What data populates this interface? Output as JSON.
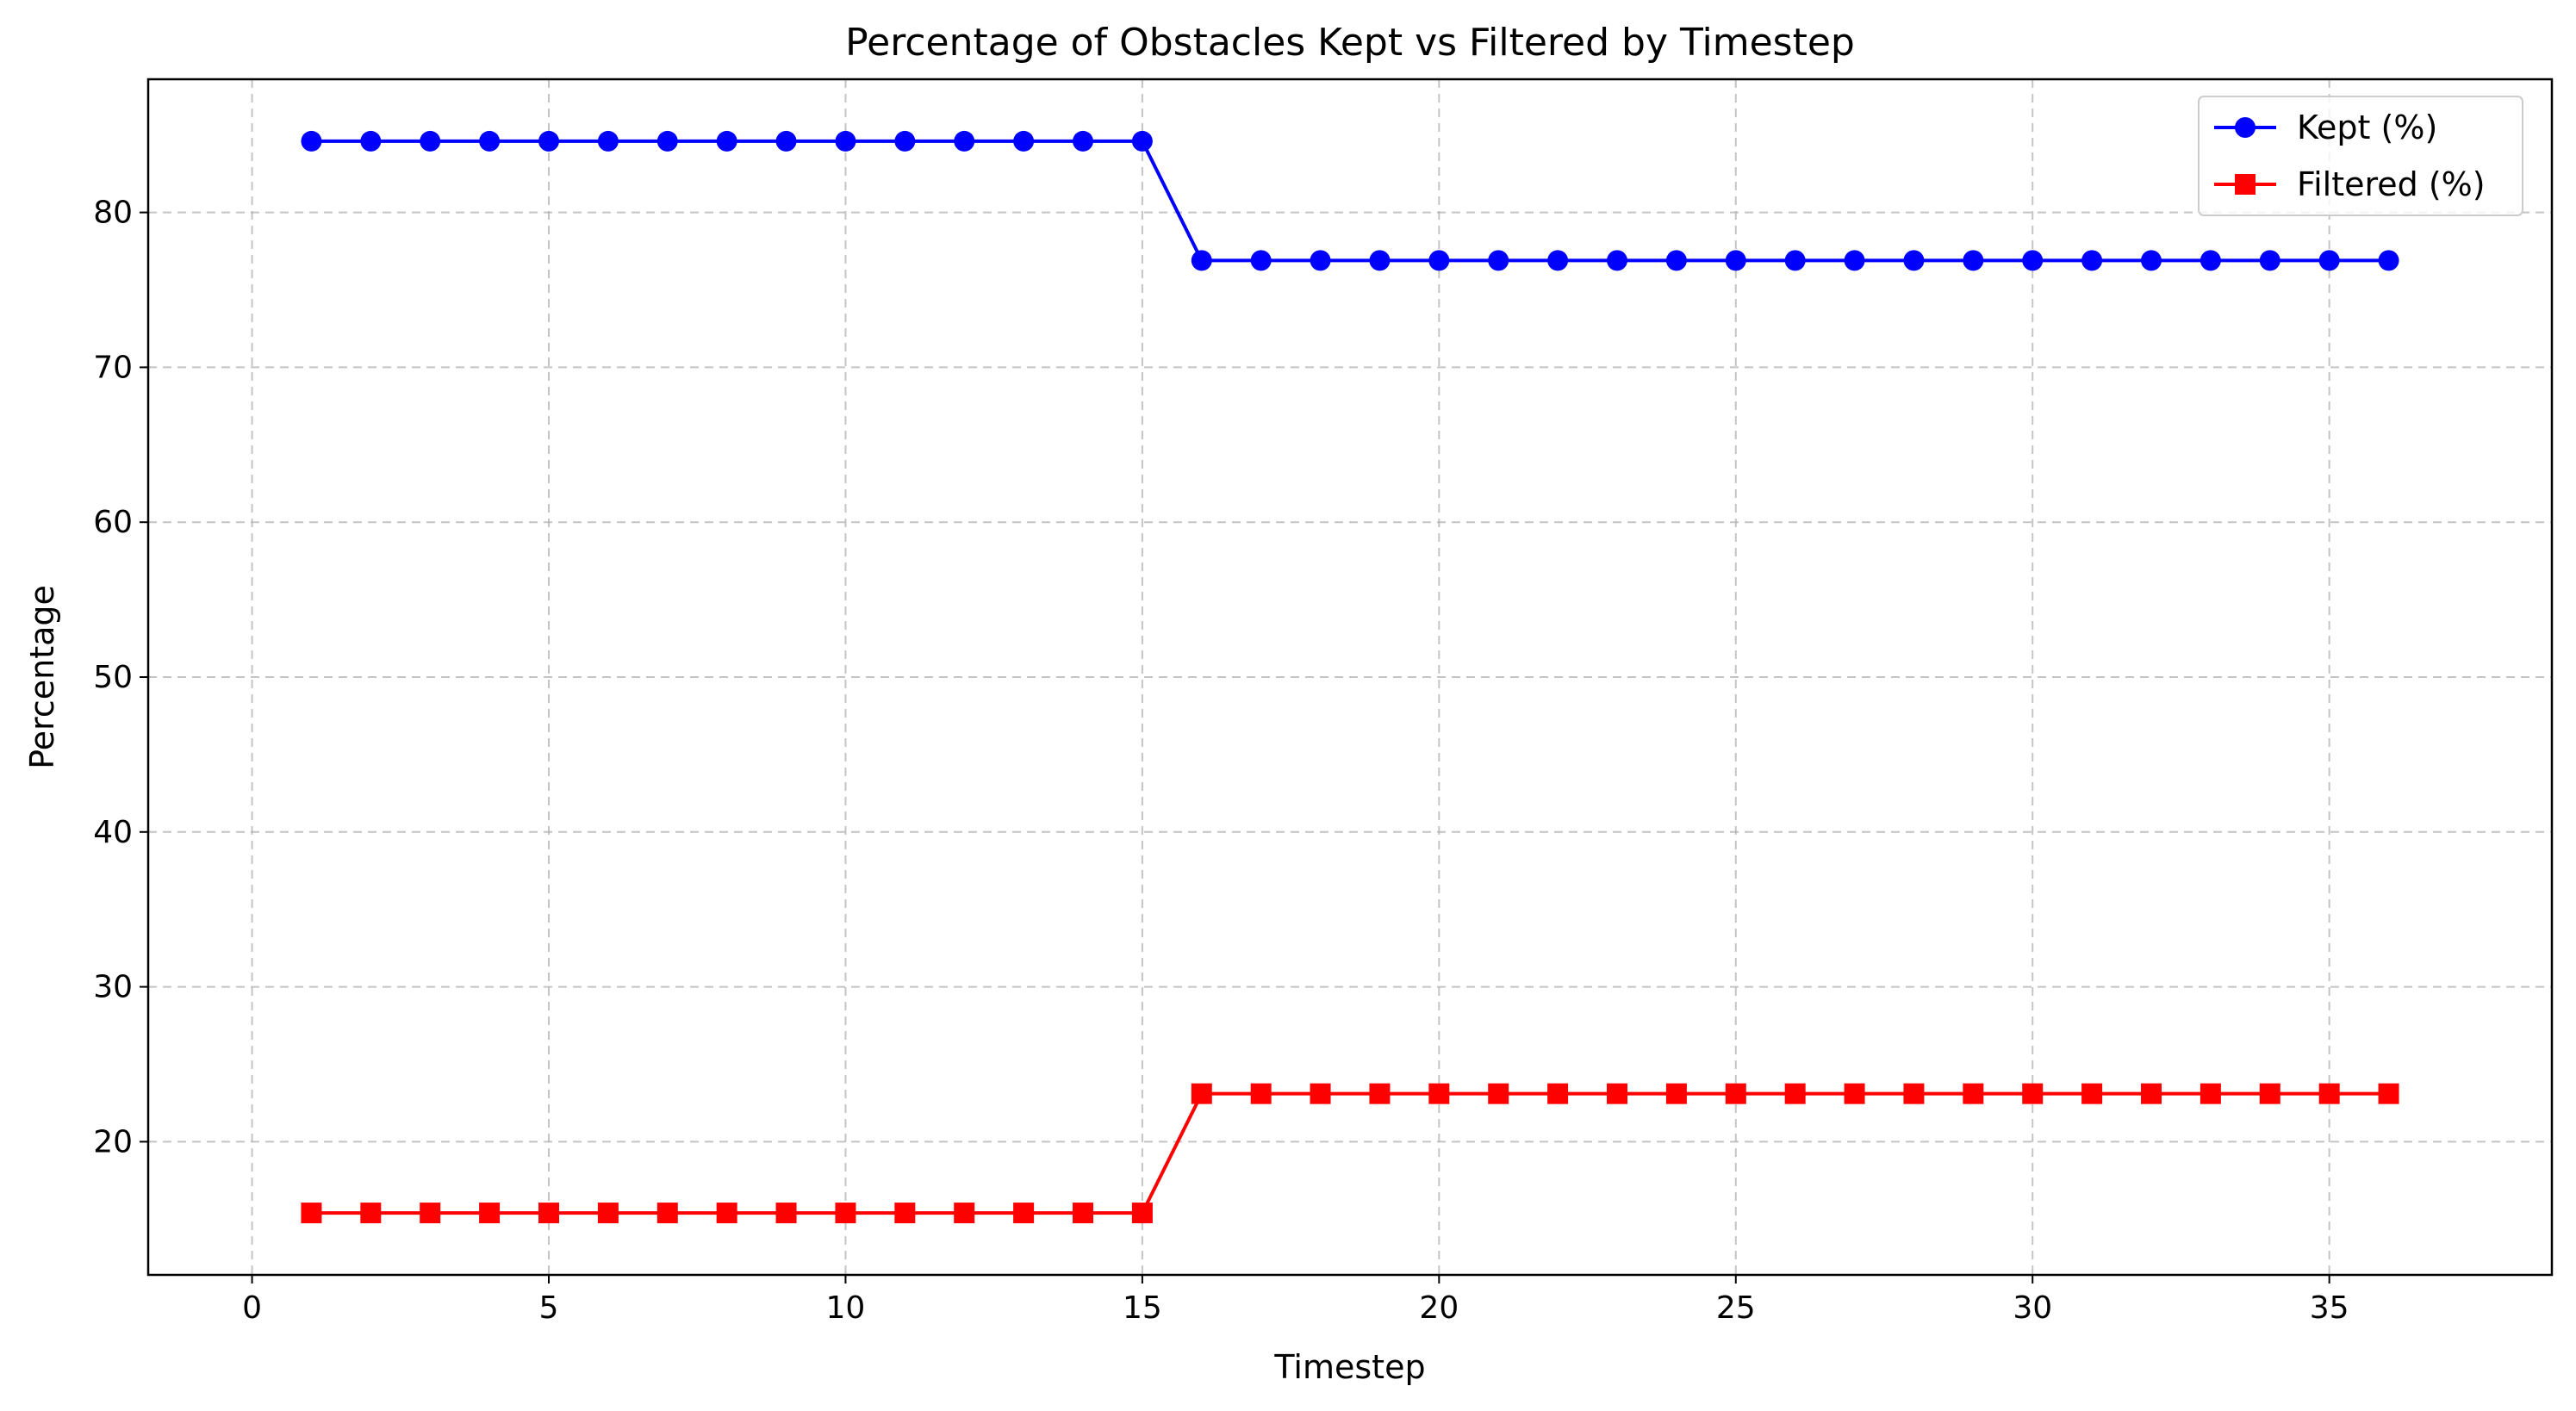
{
  "chart_data": {
    "type": "line",
    "title": "Percentage of Obstacles Kept vs Filtered by Timestep",
    "xlabel": "Timestep",
    "ylabel": "Percentage",
    "xlim": [
      -1.75,
      38.75
    ],
    "ylim": [
      11.4,
      88.6
    ],
    "xticks": [
      0,
      5,
      10,
      15,
      20,
      25,
      30,
      35
    ],
    "yticks": [
      20,
      30,
      40,
      50,
      60,
      70,
      80
    ],
    "grid": true,
    "legend_position": "top-right",
    "x": [
      1,
      2,
      3,
      4,
      5,
      6,
      7,
      8,
      9,
      10,
      11,
      12,
      13,
      14,
      15,
      16,
      17,
      18,
      19,
      20,
      21,
      22,
      23,
      24,
      25,
      26,
      27,
      28,
      29,
      30,
      31,
      32,
      33,
      34,
      35,
      36
    ],
    "series": [
      {
        "name": "Kept (%)",
        "color": "#0000ff",
        "marker": "circle",
        "values": [
          84.6,
          84.6,
          84.6,
          84.6,
          84.6,
          84.6,
          84.6,
          84.6,
          84.6,
          84.6,
          84.6,
          84.6,
          84.6,
          84.6,
          84.6,
          76.9,
          76.9,
          76.9,
          76.9,
          76.9,
          76.9,
          76.9,
          76.9,
          76.9,
          76.9,
          76.9,
          76.9,
          76.9,
          76.9,
          76.9,
          76.9,
          76.9,
          76.9,
          76.9,
          76.9,
          76.9
        ]
      },
      {
        "name": "Filtered (%)",
        "color": "#ff0000",
        "marker": "square",
        "values": [
          15.4,
          15.4,
          15.4,
          15.4,
          15.4,
          15.4,
          15.4,
          15.4,
          15.4,
          15.4,
          15.4,
          15.4,
          15.4,
          15.4,
          15.4,
          23.1,
          23.1,
          23.1,
          23.1,
          23.1,
          23.1,
          23.1,
          23.1,
          23.1,
          23.1,
          23.1,
          23.1,
          23.1,
          23.1,
          23.1,
          23.1,
          23.1,
          23.1,
          23.1,
          23.1,
          23.1
        ]
      }
    ]
  }
}
